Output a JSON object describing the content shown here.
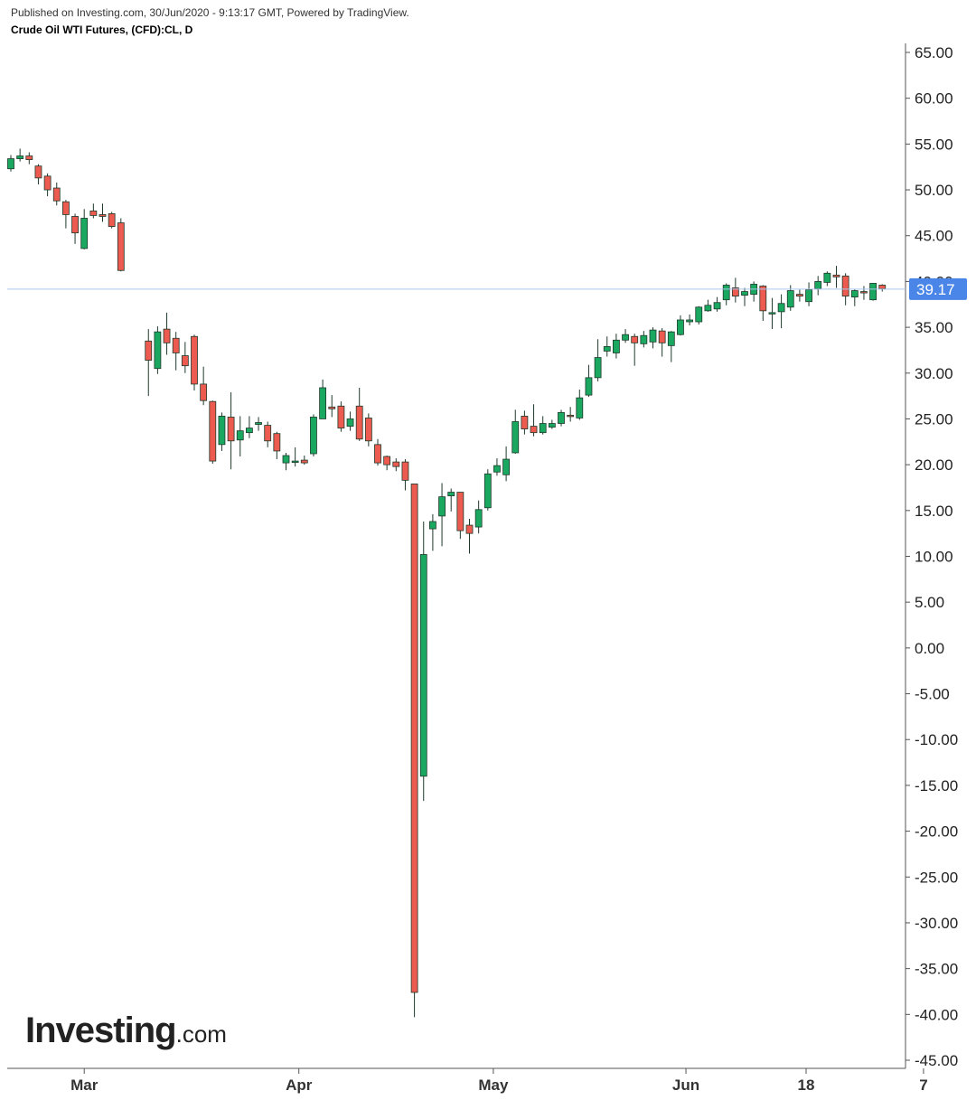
{
  "header": {
    "published": "Published on Investing.com, 30/Jun/2020 - 9:13:17 GMT, Powered by TradingView.",
    "symbol": "Crude Oil WTI Futures, (CFD):CL, D"
  },
  "logo": {
    "main": "Investing",
    "suffix": ".com"
  },
  "colors": {
    "up": "#1aa861",
    "down": "#ec5a50",
    "price_line": "#aac6ee",
    "price_badge": "#4a86e8"
  },
  "chart_data": {
    "type": "candlestick",
    "title": "Crude Oil WTI Futures, (CFD):CL, D",
    "ylim": [
      -45,
      65
    ],
    "y_ticks": [
      "65.00",
      "60.00",
      "55.00",
      "50.00",
      "45.00",
      "40.00",
      "35.00",
      "30.00",
      "25.00",
      "20.00",
      "15.00",
      "10.00",
      "5.00",
      "0.00",
      "-5.00",
      "-10.00",
      "-15.00",
      "-20.00",
      "-25.00",
      "-30.00",
      "-35.00",
      "-40.00",
      "-45.00"
    ],
    "x_ticks": [
      "Mar",
      "Apr",
      "May",
      "Jun",
      "18",
      "7"
    ],
    "last_price": 39.17,
    "last_price_label": "39.17",
    "candles": [
      [
        52.3,
        53.4,
        53.8,
        52.0
      ],
      [
        53.4,
        53.7,
        54.5,
        53.1
      ],
      [
        53.7,
        53.3,
        54.1,
        52.8
      ],
      [
        52.6,
        51.3,
        52.8,
        50.6
      ],
      [
        51.5,
        50.0,
        51.8,
        49.3
      ],
      [
        50.2,
        48.8,
        50.8,
        48.3
      ],
      [
        48.7,
        47.3,
        48.9,
        45.8
      ],
      [
        47.1,
        45.3,
        47.4,
        44.1
      ],
      [
        43.6,
        46.9,
        47.9,
        43.5
      ],
      [
        47.7,
        47.2,
        48.5,
        46.9
      ],
      [
        47.3,
        47.1,
        48.5,
        46.5
      ],
      [
        47.4,
        46.0,
        47.6,
        45.8
      ],
      [
        46.4,
        41.2,
        46.9,
        41.1
      ],
      [
        33.5,
        31.4,
        34.8,
        27.5
      ],
      [
        30.5,
        34.5,
        35.1,
        29.9
      ],
      [
        34.8,
        33.3,
        36.6,
        32.0
      ],
      [
        33.8,
        32.2,
        34.5,
        30.3
      ],
      [
        31.9,
        30.8,
        33.4,
        30.0
      ],
      [
        34.0,
        28.8,
        34.2,
        28.1
      ],
      [
        28.8,
        27.0,
        30.7,
        26.5
      ],
      [
        26.9,
        20.4,
        27.0,
        20.1
      ],
      [
        22.2,
        25.3,
        25.7,
        21.5
      ],
      [
        25.2,
        22.6,
        27.9,
        19.5
      ],
      [
        22.7,
        23.7,
        25.3,
        20.9
      ],
      [
        23.5,
        24.0,
        25.3,
        22.9
      ],
      [
        24.4,
        24.6,
        25.2,
        23.7
      ],
      [
        24.3,
        22.6,
        24.7,
        21.9
      ],
      [
        23.4,
        21.5,
        23.6,
        20.6
      ],
      [
        20.2,
        21.0,
        21.3,
        19.4
      ],
      [
        20.3,
        20.4,
        21.9,
        19.8
      ],
      [
        20.5,
        20.2,
        21.0,
        20.0
      ],
      [
        21.2,
        25.2,
        25.5,
        20.9
      ],
      [
        25.0,
        28.4,
        29.3,
        25.1
      ],
      [
        26.3,
        26.1,
        27.6,
        25.2
      ],
      [
        26.4,
        24.0,
        26.9,
        23.6
      ],
      [
        24.2,
        25.0,
        25.8,
        23.7
      ],
      [
        26.4,
        22.8,
        28.4,
        22.6
      ],
      [
        25.1,
        22.6,
        25.6,
        22.0
      ],
      [
        22.2,
        20.2,
        22.8,
        19.9
      ],
      [
        20.9,
        20.0,
        21.0,
        19.4
      ],
      [
        20.3,
        19.8,
        20.7,
        19.3
      ],
      [
        20.3,
        18.3,
        20.6,
        17.2
      ],
      [
        17.9,
        -37.6,
        17.9,
        -40.3
      ],
      [
        -14.0,
        10.2,
        13.8,
        -16.7
      ],
      [
        13.0,
        13.8,
        14.6,
        10.6
      ],
      [
        14.4,
        16.5,
        18.0,
        11.1
      ],
      [
        16.6,
        17.0,
        17.4,
        14.9
      ],
      [
        17.0,
        12.8,
        17.0,
        11.9
      ],
      [
        13.4,
        12.5,
        14.1,
        10.3
      ],
      [
        13.2,
        15.1,
        16.1,
        12.5
      ],
      [
        15.3,
        19.0,
        19.5,
        15.0
      ],
      [
        19.2,
        19.9,
        20.7,
        18.8
      ],
      [
        18.9,
        20.6,
        22.0,
        18.2
      ],
      [
        21.3,
        24.7,
        26.0,
        21.2
      ],
      [
        25.3,
        23.9,
        25.9,
        23.3
      ],
      [
        24.2,
        23.5,
        26.6,
        23.1
      ],
      [
        23.5,
        24.5,
        25.3,
        23.3
      ],
      [
        24.1,
        24.5,
        24.9,
        23.9
      ],
      [
        24.5,
        25.7,
        26.0,
        24.2
      ],
      [
        25.4,
        25.3,
        26.3,
        24.7
      ],
      [
        25.1,
        27.3,
        28.2,
        24.9
      ],
      [
        27.6,
        29.5,
        30.9,
        27.4
      ],
      [
        29.5,
        31.7,
        33.7,
        29.1
      ],
      [
        32.4,
        32.9,
        34.0,
        31.8
      ],
      [
        32.2,
        33.6,
        34.3,
        31.6
      ],
      [
        33.6,
        34.2,
        34.8,
        33.3
      ],
      [
        34.0,
        33.3,
        34.3,
        30.8
      ],
      [
        33.2,
        34.1,
        34.6,
        32.8
      ],
      [
        33.4,
        34.7,
        35.0,
        32.7
      ],
      [
        34.6,
        33.3,
        34.9,
        31.8
      ],
      [
        33.0,
        34.5,
        34.6,
        31.2
      ],
      [
        34.2,
        35.8,
        36.3,
        34.1
      ],
      [
        35.6,
        35.8,
        36.4,
        35.2
      ],
      [
        35.6,
        37.2,
        37.3,
        35.3
      ],
      [
        36.8,
        37.4,
        38.0,
        36.7
      ],
      [
        37.0,
        37.7,
        38.3,
        36.7
      ],
      [
        38.0,
        39.6,
        39.8,
        37.4
      ],
      [
        39.3,
        38.4,
        40.4,
        37.7
      ],
      [
        38.5,
        38.9,
        39.3,
        37.3
      ],
      [
        38.6,
        39.7,
        40.0,
        37.8
      ],
      [
        39.5,
        36.8,
        39.6,
        35.7
      ],
      [
        36.6,
        36.6,
        38.2,
        34.8
      ],
      [
        36.7,
        37.6,
        38.6,
        34.9
      ],
      [
        37.2,
        39.0,
        39.6,
        36.8
      ],
      [
        38.6,
        38.4,
        39.1,
        37.8
      ],
      [
        37.8,
        39.1,
        39.9,
        37.3
      ],
      [
        39.2,
        40.0,
        40.6,
        38.5
      ],
      [
        39.9,
        40.9,
        41.1,
        39.5
      ],
      [
        40.7,
        40.5,
        41.7,
        39.3
      ],
      [
        40.6,
        38.4,
        40.9,
        37.4
      ],
      [
        38.3,
        39.0,
        39.2,
        37.3
      ],
      [
        38.9,
        38.8,
        39.5,
        38.0
      ],
      [
        38.0,
        39.8,
        39.8,
        37.9
      ],
      [
        39.6,
        39.2,
        39.7,
        38.9
      ]
    ]
  }
}
